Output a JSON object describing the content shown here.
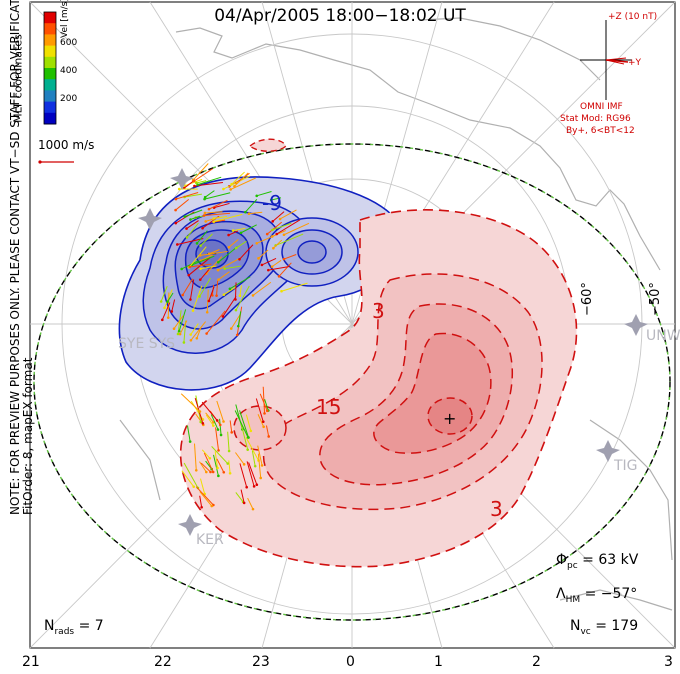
{
  "title": "04/Apr/2005 18:00−18:02 UT",
  "note_lines": [
    "NOTE: FOR PREVIEW PURPOSES ONLY. PLEASE CONTACT VT−SD STAFF FOR VERIFICATION.",
    "FitOrder: 8, mapEX format"
  ],
  "coordinates_label": "MLT coordinates",
  "colorbar": {
    "label": "Vel [m/s]",
    "ticks": [
      "600",
      "400",
      "200"
    ],
    "colors": [
      "#e00000",
      "#ff5000",
      "#ff9a00",
      "#f0e000",
      "#a0e000",
      "#20c000",
      "#00b090",
      "#2080c0",
      "#1030e0",
      "#0000c0"
    ]
  },
  "scale_vector": {
    "label": "1000 m/s",
    "color": "#d00000"
  },
  "imf": {
    "z_label": "+Z (10 nT)",
    "y_label": "+Y",
    "omni_label": "OMNI IMF",
    "model_line1": "Stat Mod: RG96",
    "model_line2": "By+, 6<BT<12"
  },
  "contour_labels": {
    "neg": [
      "-9"
    ],
    "pos": [
      "3",
      "15",
      "3"
    ]
  },
  "stations": [
    "SYE SYS",
    "UNW",
    "TIG",
    "KER"
  ],
  "latitude_labels": [
    "−60°",
    "−50°"
  ],
  "mlt_labels": [
    "21",
    "22",
    "23",
    "0",
    "1",
    "2",
    "3"
  ],
  "stats": {
    "phi_pc_symbol": "Φ",
    "phi_pc_sub": "pc",
    "phi_pc_value": "= 63 kV",
    "lambda_symbol": "Λ",
    "lambda_sub": "HM",
    "lambda_value": "= −57°",
    "nvc_symbol": "N",
    "nvc_sub": "vc",
    "nvc_value": "= 179",
    "nrads_symbol": "N",
    "nrads_sub": "rads",
    "nrads_value": "= 7"
  },
  "colors": {
    "neg_contour": "#1020c0",
    "pos_contour": "#d01010",
    "neg_fill": "#c8cceb",
    "pos_fill": "#f4c4c4",
    "boundary": "#60c040"
  }
}
